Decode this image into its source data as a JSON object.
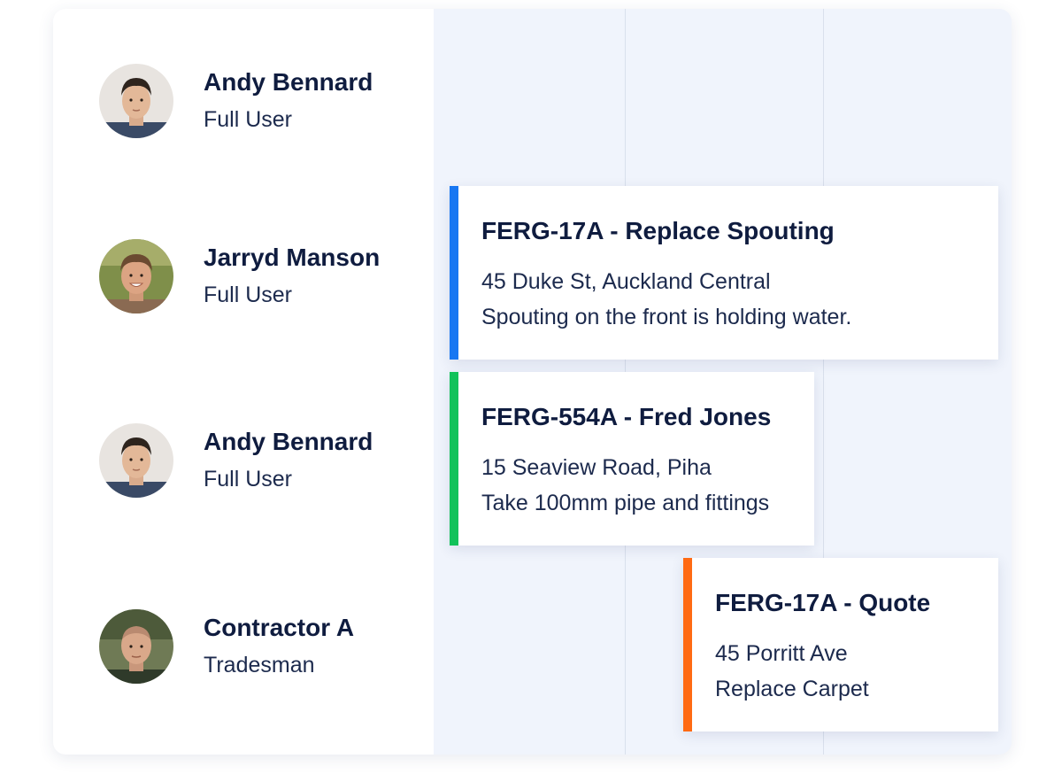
{
  "users": [
    {
      "name": "Andy Bennard",
      "role": "Full User",
      "avatar": "avatar-man-dark-hair"
    },
    {
      "name": "Jarryd Manson",
      "role": "Full User",
      "avatar": "avatar-man-smiling"
    },
    {
      "name": "Andy Bennard",
      "role": "Full User",
      "avatar": "avatar-man-dark-hair"
    },
    {
      "name": "Contractor A",
      "role": "Tradesman",
      "avatar": "avatar-man-bald"
    }
  ],
  "jobs": [
    {
      "title": "FERG-17A - Replace Spouting",
      "address": "45 Duke St, Auckland Central",
      "note": "Spouting on the front is holding water.",
      "accent_color": "#1877f2"
    },
    {
      "title": "FERG-554A - Fred Jones",
      "address": "15 Seaview Road, Piha",
      "note": "Take 100mm pipe and fittings",
      "accent_color": "#12c25a"
    },
    {
      "title": "FERG-17A - Quote",
      "address": "45 Porritt Ave",
      "note": "Replace Carpet",
      "accent_color": "#ff6a13"
    }
  ]
}
